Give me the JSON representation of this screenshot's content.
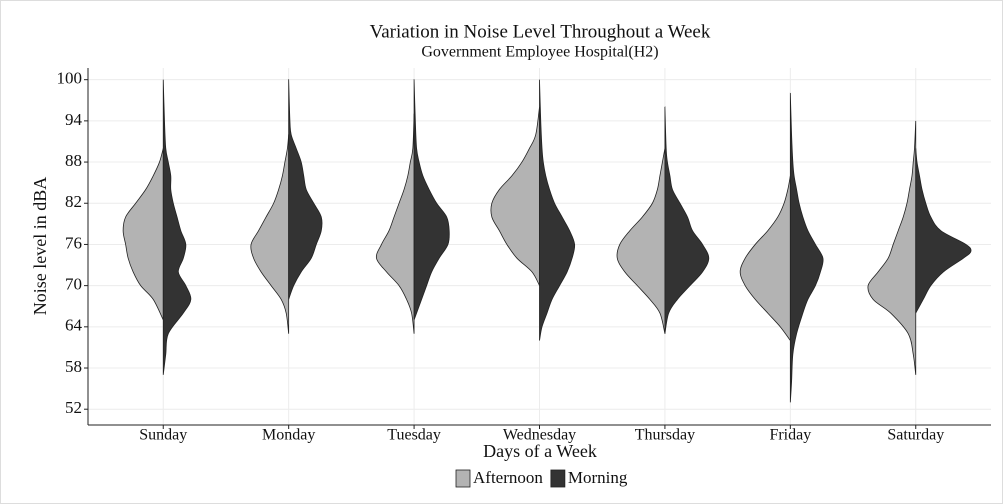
{
  "chart_data": {
    "type": "split_violin",
    "title": "Variation in Noise Level Throughout a Week",
    "subtitle": "Government Employee Hospital(H2)",
    "x_label": "Days of a Week",
    "y_label": "Noise level in dBA",
    "categories": [
      "Sunday",
      "Monday",
      "Tuesday",
      "Wednesday",
      "Thursday",
      "Friday",
      "Saturday"
    ],
    "ylim": [
      49.7,
      101.7
    ],
    "yticks": [
      52,
      58,
      64,
      70,
      76,
      82,
      88,
      94,
      100
    ],
    "grid": true,
    "legend": "bottom",
    "series": [
      {
        "name": "Afternoon",
        "color": "#b3b3b3",
        "side": "left",
        "values": [
          {
            "y": [
              65,
              68,
              70,
              72,
              74,
              76,
              78,
              80,
              82,
              84,
              86,
              88,
              90
            ],
            "density": [
              0,
              8,
              18,
              24,
              28,
              30,
              32,
              30,
              22,
              14,
              8,
              3,
              0
            ]
          },
          {
            "y": [
              63,
              66,
              68,
              70,
              72,
              74,
              76,
              78,
              80,
              82,
              84,
              86,
              88,
              90,
              92
            ],
            "density": [
              0,
              2,
              6,
              14,
              22,
              28,
              30,
              24,
              18,
              12,
              8,
              5,
              3,
              1,
              0
            ]
          },
          {
            "y": [
              63,
              66,
              68,
              70,
              72,
              74,
              76,
              78,
              80,
              82,
              84,
              86,
              88,
              90,
              95
            ],
            "density": [
              0,
              2,
              6,
              12,
              22,
              30,
              26,
              20,
              16,
              12,
              8,
              5,
              3,
              1,
              0
            ]
          },
          {
            "y": [
              70,
              72,
              74,
              76,
              78,
              80,
              82,
              84,
              86,
              88,
              90,
              92,
              96
            ],
            "density": [
              0,
              6,
              18,
              26,
              32,
              38,
              38,
              32,
              22,
              14,
              8,
              3,
              0
            ]
          },
          {
            "y": [
              63,
              66,
              68,
              70,
              72,
              74,
              76,
              78,
              80,
              82,
              84,
              86,
              88,
              90
            ],
            "density": [
              0,
              4,
              12,
              22,
              32,
              38,
              36,
              28,
              18,
              10,
              6,
              4,
              2,
              0
            ]
          },
          {
            "y": [
              62,
              64,
              66,
              68,
              70,
              72,
              74,
              76,
              78,
              80,
              82,
              84,
              86
            ],
            "density": [
              0,
              8,
              18,
              28,
              36,
              40,
              36,
              28,
              18,
              10,
              5,
              2,
              0
            ]
          },
          {
            "y": [
              57,
              60,
              63,
              66,
              68,
              70,
              72,
              74,
              76,
              78,
              80,
              82,
              84,
              86,
              88,
              90,
              94
            ],
            "density": [
              0,
              2,
              6,
              20,
              34,
              38,
              30,
              22,
              18,
              14,
              10,
              7,
              5,
              3,
              2,
              1,
              0
            ]
          }
        ]
      },
      {
        "name": "Morning",
        "color": "#333333",
        "side": "right",
        "values": [
          {
            "y": [
              57,
              60,
              63,
              66,
              68,
              70,
              72,
              74,
              76,
              78,
              80,
              82,
              84,
              86,
              88,
              90,
              94,
              100
            ],
            "density": [
              0,
              2,
              4,
              16,
              22,
              18,
              12,
              16,
              18,
              14,
              11,
              8,
              6,
              6,
              4,
              2,
              1,
              0
            ]
          },
          {
            "y": [
              68,
              70,
              72,
              74,
              76,
              78,
              80,
              82,
              84,
              86,
              88,
              90,
              92,
              94,
              100
            ],
            "density": [
              0,
              4,
              10,
              18,
              22,
              26,
              26,
              20,
              14,
              12,
              10,
              6,
              2,
              1,
              0
            ]
          },
          {
            "y": [
              65,
              68,
              70,
              72,
              74,
              76,
              78,
              80,
              82,
              84,
              86,
              88,
              90,
              94,
              100
            ],
            "density": [
              0,
              6,
              10,
              14,
              20,
              27,
              28,
              26,
              18,
              12,
              7,
              4,
              2,
              1,
              0
            ]
          },
          {
            "y": [
              62,
              64,
              66,
              68,
              70,
              72,
              74,
              76,
              78,
              80,
              82,
              84,
              86,
              88,
              90,
              94,
              100
            ],
            "density": [
              0,
              2,
              6,
              10,
              16,
              22,
              26,
              28,
              24,
              18,
              12,
              8,
              5,
              3,
              2,
              1,
              0
            ]
          },
          {
            "y": [
              63,
              66,
              68,
              70,
              72,
              74,
              76,
              78,
              80,
              82,
              84,
              86,
              88,
              90,
              96
            ],
            "density": [
              0,
              3,
              10,
              20,
              30,
              35,
              30,
              22,
              18,
              12,
              6,
              4,
              2,
              1,
              0
            ]
          },
          {
            "y": [
              53,
              56,
              60,
              63,
              66,
              68,
              70,
              72,
              74,
              76,
              78,
              80,
              82,
              84,
              86,
              88,
              92,
              98
            ],
            "density": [
              0,
              1,
              2,
              5,
              10,
              14,
              20,
              24,
              26,
              20,
              14,
              10,
              7,
              5,
              3,
              2,
              1,
              0
            ]
          },
          {
            "y": [
              66,
              68,
              70,
              72,
              74,
              75,
              76,
              78,
              80,
              82,
              84,
              86,
              88,
              90
            ],
            "density": [
              0,
              6,
              12,
              22,
              38,
              44,
              40,
              20,
              12,
              8,
              5,
              3,
              1,
              0
            ]
          }
        ]
      }
    ]
  }
}
